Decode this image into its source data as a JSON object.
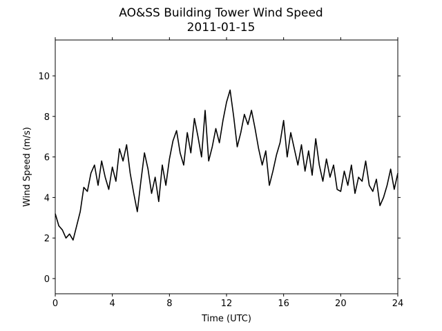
{
  "chart_data": {
    "type": "line",
    "title": "AO&SS Building Tower Wind Speed",
    "subtitle": "2011-01-15",
    "x_label": "Time (UTC)",
    "y_label": "Wind Speed (m/s)",
    "x": [
      0,
      0.25,
      0.5,
      0.75,
      1,
      1.25,
      1.5,
      1.75,
      2,
      2.25,
      2.5,
      2.75,
      3,
      3.25,
      3.5,
      3.75,
      4,
      4.25,
      4.5,
      4.75,
      5,
      5.25,
      5.5,
      5.75,
      6,
      6.25,
      6.5,
      6.75,
      7,
      7.25,
      7.5,
      7.75,
      8,
      8.25,
      8.5,
      8.75,
      9,
      9.25,
      9.5,
      9.75,
      10,
      10.25,
      10.5,
      10.75,
      11,
      11.25,
      11.5,
      11.75,
      12,
      12.25,
      12.5,
      12.75,
      13,
      13.25,
      13.5,
      13.75,
      14,
      14.25,
      14.5,
      14.75,
      15,
      15.25,
      15.5,
      15.75,
      16,
      16.25,
      16.5,
      16.75,
      17,
      17.25,
      17.5,
      17.75,
      18,
      18.25,
      18.5,
      18.75,
      19,
      19.25,
      19.5,
      19.75,
      20,
      20.25,
      20.5,
      20.75,
      21,
      21.25,
      21.5,
      21.75,
      22,
      22.25,
      22.5,
      22.75,
      23,
      23.25,
      23.5,
      23.75,
      24
    ],
    "series": [
      {
        "name": "Wind Speed",
        "color": "#000000",
        "values": [
          3.2,
          2.6,
          2.4,
          2.0,
          2.2,
          1.9,
          2.6,
          3.3,
          4.5,
          4.3,
          5.2,
          5.6,
          4.6,
          5.8,
          5.0,
          4.4,
          5.5,
          4.8,
          6.4,
          5.8,
          6.6,
          5.2,
          4.2,
          3.3,
          4.8,
          6.2,
          5.4,
          4.2,
          5.0,
          3.8,
          5.6,
          4.6,
          5.9,
          6.8,
          7.3,
          6.2,
          5.6,
          7.2,
          6.2,
          7.9,
          7.0,
          6.0,
          8.3,
          5.8,
          6.5,
          7.4,
          6.7,
          7.8,
          8.7,
          9.3,
          8.0,
          6.5,
          7.2,
          8.1,
          7.6,
          8.3,
          7.4,
          6.4,
          5.6,
          6.3,
          4.6,
          5.3,
          6.1,
          6.7,
          7.8,
          6.0,
          7.2,
          6.4,
          5.6,
          6.6,
          5.3,
          6.3,
          5.1,
          6.9,
          5.6,
          4.8,
          5.9,
          5.0,
          5.6,
          4.4,
          4.3,
          5.3,
          4.6,
          5.6,
          4.2,
          5.0,
          4.8,
          5.8,
          4.6,
          4.3,
          4.9,
          3.6,
          4.0,
          4.6,
          5.4,
          4.4,
          5.2
        ]
      }
    ],
    "xlim": [
      0,
      24
    ],
    "xticks": [
      0,
      4,
      8,
      12,
      16,
      20,
      24
    ],
    "ylim": [
      -0.75,
      11.77
    ],
    "yticks": [
      0,
      2,
      4,
      6,
      8,
      10
    ]
  }
}
